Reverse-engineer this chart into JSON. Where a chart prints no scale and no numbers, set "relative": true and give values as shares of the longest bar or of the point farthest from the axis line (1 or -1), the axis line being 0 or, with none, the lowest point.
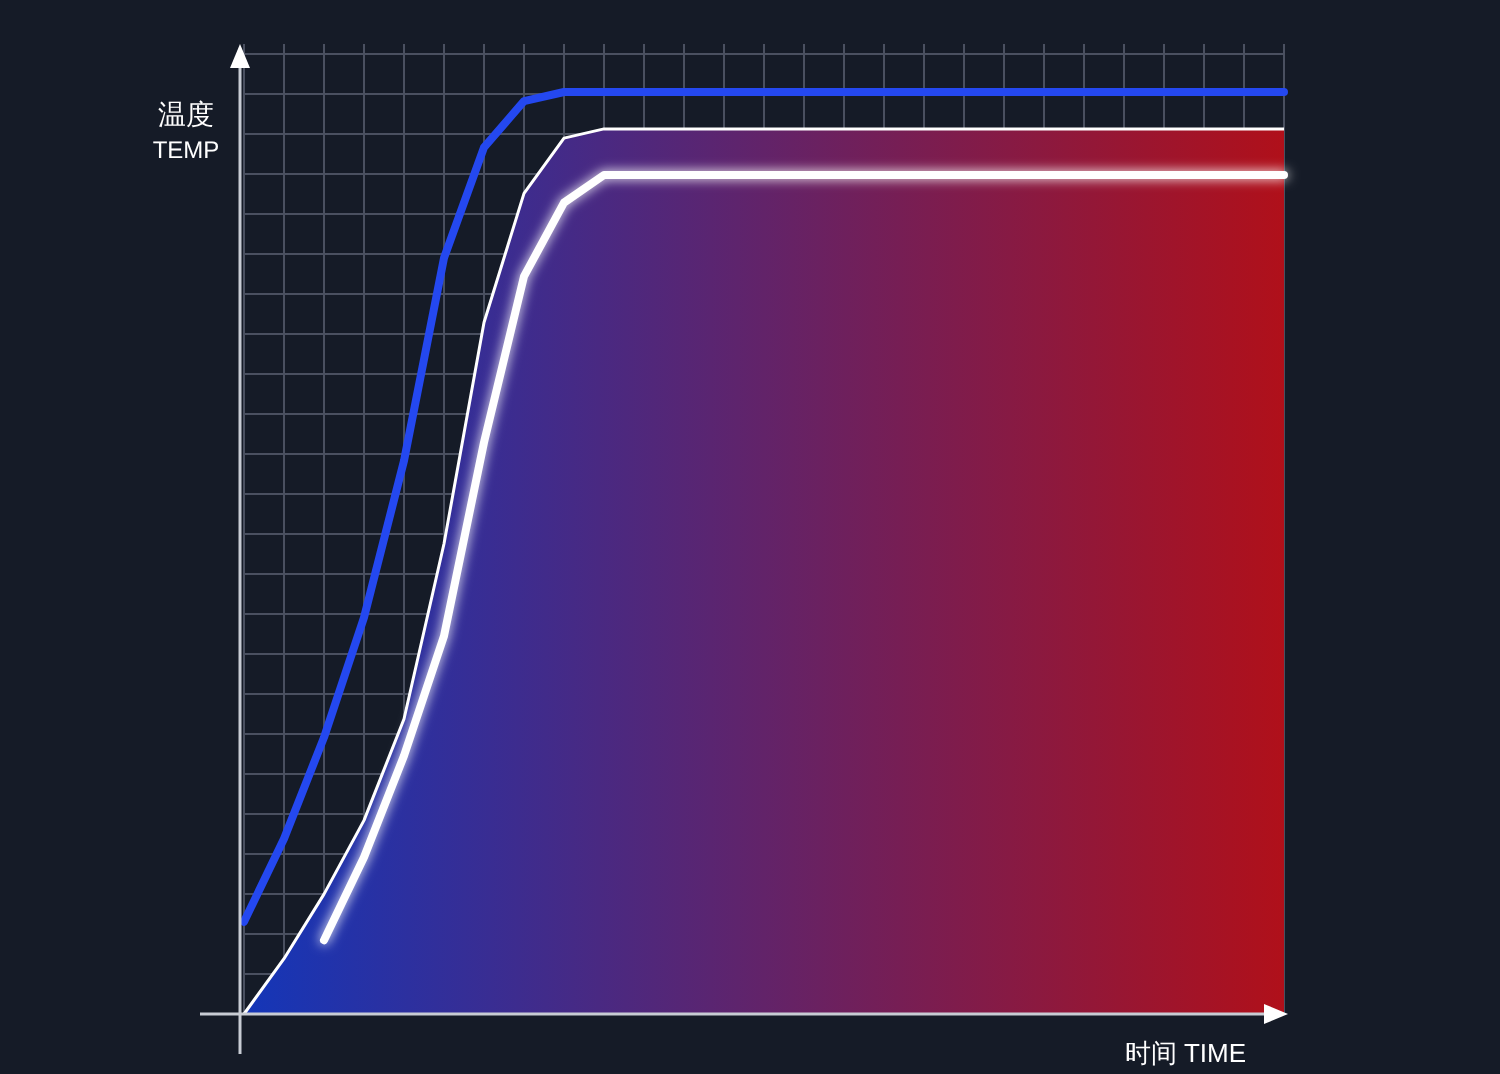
{
  "chart_data": {
    "type": "line",
    "relative": true,
    "grid": true,
    "ylabel": "温度\nTEMP",
    "xlabel": "时间 TIME",
    "categories": [
      null,
      null,
      null,
      null,
      null,
      null,
      null,
      null,
      null,
      null,
      null,
      null,
      null,
      null,
      null,
      null,
      null,
      null,
      null,
      null,
      null,
      null,
      null,
      null,
      null,
      null,
      null
    ],
    "series": [
      {
        "color": "#2448f0",
        "values": [
          0.1,
          0.19,
          0.3,
          0.43,
          0.6,
          0.82,
          0.94,
          0.99,
          1,
          1,
          1,
          1,
          1,
          1,
          1,
          1,
          1,
          1,
          1,
          1,
          1,
          1,
          1,
          1,
          1,
          1,
          1
        ]
      },
      {
        "type": "area",
        "color": "#ffffff",
        "values": [
          0,
          0.06,
          0.13,
          0.21,
          0.32,
          0.51,
          0.75,
          0.89,
          0.95,
          0.96,
          0.96,
          0.96,
          0.96,
          0.96,
          0.96,
          0.96,
          0.96,
          0.96,
          0.96,
          0.96,
          0.96,
          0.96,
          0.96,
          0.96,
          0.96,
          0.96,
          0.96
        ]
      },
      {
        "color": "#ffffff",
        "values": [
          null,
          null,
          0.08,
          0.17,
          0.28,
          0.41,
          0.62,
          0.8,
          0.88,
          0.91,
          0.91,
          0.91,
          0.91,
          0.91,
          0.91,
          0.91,
          0.91,
          0.91,
          0.91,
          0.91,
          0.91,
          0.91,
          0.91,
          0.91,
          0.91,
          0.91,
          0.91
        ]
      }
    ]
  }
}
